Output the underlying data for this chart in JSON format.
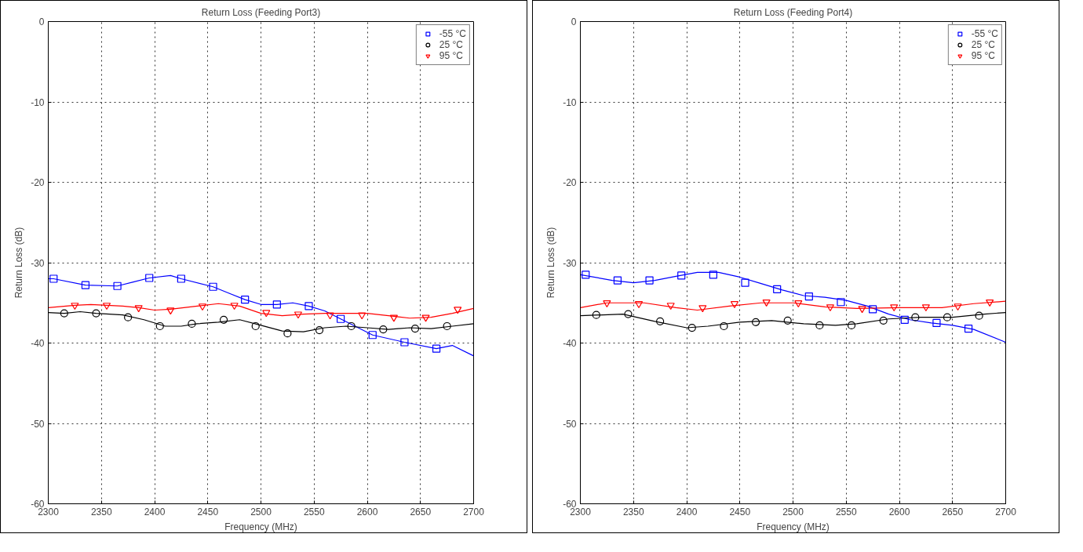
{
  "chart_data": [
    {
      "type": "line",
      "title": "Return Loss (Feeding Port3)",
      "xlabel": "Frequency (MHz)",
      "ylabel": "Return Loss (dB)",
      "xlim": [
        2300,
        2700
      ],
      "ylim": [
        -60,
        0
      ],
      "xticks": [
        2300,
        2350,
        2400,
        2450,
        2500,
        2550,
        2600,
        2650,
        2700
      ],
      "yticks": [
        -60,
        -50,
        -40,
        -30,
        -20,
        -10,
        0
      ],
      "grid": true,
      "legend": "top right",
      "series": [
        {
          "color": "#0000ff",
          "marker": "none",
          "x": [
            2300,
            2305,
            2335,
            2365,
            2380,
            2395,
            2415,
            2425,
            2455,
            2470,
            2485,
            2500,
            2515,
            2530,
            2545,
            2560,
            2575,
            2605,
            2635,
            2665,
            2680,
            2700
          ],
          "values": [
            -32.0,
            -32.0,
            -32.8,
            -32.9,
            -32.4,
            -31.9,
            -31.6,
            -32.0,
            -33.0,
            -33.8,
            -34.6,
            -35.2,
            -35.2,
            -35.0,
            -35.4,
            -36.0,
            -37.0,
            -39.0,
            -39.9,
            -40.7,
            -40.3,
            -41.6
          ]
        },
        {
          "color": "#000000",
          "marker": "none",
          "x": [
            2300,
            2315,
            2330,
            2345,
            2370,
            2390,
            2410,
            2425,
            2440,
            2460,
            2480,
            2500,
            2520,
            2540,
            2560,
            2580,
            2600,
            2620,
            2640,
            2660,
            2680,
            2700
          ],
          "values": [
            -36.2,
            -36.3,
            -36.1,
            -36.3,
            -36.5,
            -37.1,
            -37.9,
            -37.9,
            -37.6,
            -37.4,
            -37.1,
            -37.8,
            -38.5,
            -38.6,
            -38.1,
            -37.9,
            -38.1,
            -38.3,
            -38.1,
            -38.2,
            -37.9,
            -37.6
          ]
        },
        {
          "color": "#ff0000",
          "marker": "none",
          "x": [
            2300,
            2325,
            2340,
            2355,
            2370,
            2385,
            2400,
            2415,
            2440,
            2460,
            2480,
            2500,
            2520,
            2540,
            2560,
            2600,
            2620,
            2640,
            2660,
            2680,
            2700
          ],
          "values": [
            -35.6,
            -35.3,
            -35.2,
            -35.3,
            -35.4,
            -35.6,
            -35.9,
            -35.8,
            -35.4,
            -35.1,
            -35.4,
            -36.3,
            -36.6,
            -36.4,
            -36.3,
            -36.3,
            -36.6,
            -36.9,
            -36.8,
            -36.3,
            -35.7
          ]
        },
        {
          "type": "scatter",
          "name": "-55 °C",
          "color": "#0000ff",
          "marker": "square",
          "x": [
            2305,
            2335,
            2365,
            2395,
            2425,
            2455,
            2485,
            2515,
            2545,
            2575,
            2605,
            2635,
            2665
          ],
          "values": [
            -32.0,
            -32.8,
            -32.9,
            -31.9,
            -32.0,
            -33.0,
            -34.6,
            -35.2,
            -35.4,
            -37.0,
            -39.0,
            -39.9,
            -40.7
          ]
        },
        {
          "type": "scatter",
          "name": "25 °C",
          "color": "#000000",
          "marker": "circle",
          "x": [
            2315,
            2345,
            2375,
            2405,
            2435,
            2465,
            2495,
            2525,
            2555,
            2585,
            2615,
            2645,
            2675
          ],
          "values": [
            -36.3,
            -36.3,
            -36.8,
            -37.9,
            -37.6,
            -37.1,
            -37.9,
            -38.8,
            -38.4,
            -37.9,
            -38.3,
            -38.2,
            -37.9
          ]
        },
        {
          "type": "scatter",
          "name": "95 °C",
          "color": "#ff0000",
          "marker": "triangle",
          "x": [
            2325,
            2355,
            2385,
            2415,
            2445,
            2475,
            2505,
            2535,
            2565,
            2595,
            2625,
            2655,
            2685
          ],
          "values": [
            -35.3,
            -35.3,
            -35.6,
            -35.9,
            -35.4,
            -35.3,
            -36.2,
            -36.4,
            -36.5,
            -36.5,
            -36.8,
            -36.8,
            -35.8
          ]
        }
      ]
    },
    {
      "type": "line",
      "title": "Return Loss (Feeding Port4)",
      "xlabel": "Frequency (MHz)",
      "ylabel": "Return Loss (dB)",
      "xlim": [
        2300,
        2700
      ],
      "ylim": [
        -60,
        0
      ],
      "xticks": [
        2300,
        2350,
        2400,
        2450,
        2500,
        2550,
        2600,
        2650,
        2700
      ],
      "yticks": [
        -60,
        -50,
        -40,
        -30,
        -20,
        -10,
        0
      ],
      "grid": true,
      "legend": "top right",
      "series": [
        {
          "color": "#0000ff",
          "marker": "none",
          "x": [
            2300,
            2330,
            2350,
            2370,
            2390,
            2410,
            2430,
            2450,
            2470,
            2490,
            2510,
            2530,
            2550,
            2570,
            2590,
            2610,
            2630,
            2650,
            2670,
            2700
          ],
          "values": [
            -31.5,
            -32.2,
            -32.5,
            -32.2,
            -31.7,
            -31.2,
            -31.2,
            -31.8,
            -32.6,
            -33.4,
            -34.1,
            -34.3,
            -34.7,
            -35.4,
            -36.4,
            -37.1,
            -37.5,
            -37.8,
            -38.3,
            -39.9
          ]
        },
        {
          "color": "#000000",
          "marker": "none",
          "x": [
            2300,
            2340,
            2370,
            2400,
            2420,
            2450,
            2480,
            2510,
            2540,
            2560,
            2590,
            2620,
            2650,
            2680,
            2700
          ],
          "values": [
            -36.6,
            -36.4,
            -37.3,
            -38.1,
            -37.9,
            -37.4,
            -37.2,
            -37.6,
            -37.8,
            -37.6,
            -37.0,
            -36.8,
            -36.8,
            -36.4,
            -36.2
          ]
        },
        {
          "color": "#ff0000",
          "marker": "none",
          "x": [
            2300,
            2325,
            2360,
            2390,
            2410,
            2440,
            2470,
            2500,
            2530,
            2560,
            2600,
            2640,
            2670,
            2700
          ],
          "values": [
            -35.6,
            -35.0,
            -35.0,
            -35.6,
            -35.9,
            -35.4,
            -35.0,
            -35.0,
            -35.5,
            -35.7,
            -35.6,
            -35.6,
            -35.1,
            -34.8
          ]
        },
        {
          "type": "scatter",
          "name": "-55 °C",
          "color": "#0000ff",
          "marker": "square",
          "x": [
            2305,
            2335,
            2365,
            2395,
            2425,
            2455,
            2485,
            2515,
            2545,
            2575,
            2605,
            2635,
            2665
          ],
          "values": [
            -31.5,
            -32.2,
            -32.2,
            -31.6,
            -31.5,
            -32.5,
            -33.3,
            -34.2,
            -34.9,
            -35.8,
            -37.1,
            -37.5,
            -38.2
          ]
        },
        {
          "type": "scatter",
          "name": "25 °C",
          "color": "#000000",
          "marker": "circle",
          "x": [
            2315,
            2345,
            2375,
            2405,
            2435,
            2465,
            2495,
            2525,
            2555,
            2585,
            2615,
            2645,
            2675
          ],
          "values": [
            -36.5,
            -36.4,
            -37.3,
            -38.1,
            -37.9,
            -37.4,
            -37.2,
            -37.8,
            -37.8,
            -37.2,
            -36.8,
            -36.8,
            -36.6
          ]
        },
        {
          "type": "scatter",
          "name": "95 °C",
          "color": "#ff0000",
          "marker": "triangle",
          "x": [
            2325,
            2355,
            2385,
            2415,
            2445,
            2475,
            2505,
            2535,
            2565,
            2595,
            2625,
            2655,
            2685
          ],
          "values": [
            -35.0,
            -35.1,
            -35.3,
            -35.6,
            -35.1,
            -34.9,
            -35.0,
            -35.5,
            -35.7,
            -35.5,
            -35.5,
            -35.4,
            -34.9
          ]
        }
      ]
    }
  ]
}
